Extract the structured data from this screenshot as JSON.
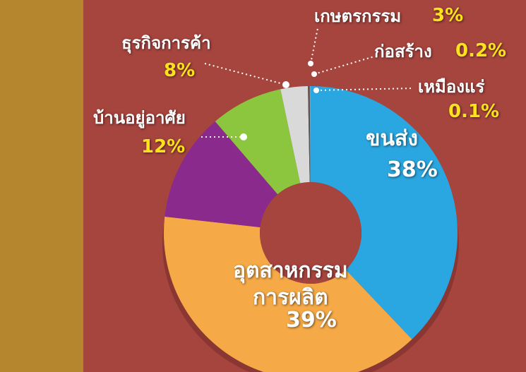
{
  "chart_data": {
    "type": "donut",
    "categories": [
      "ขนส่ง",
      "อุตสาหกรรม\nการผลิต",
      "บ้านอยู่อาศัย",
      "ธุรกิจการค้า",
      "เกษตรกรรม",
      "ก่อสร้าง",
      "เหมืองแร่"
    ],
    "values": [
      38,
      39,
      12,
      8,
      3,
      0.2,
      0.1
    ],
    "value_labels": [
      "38%",
      "39%",
      "12%",
      "8%",
      "3%",
      "0.2%",
      "0.1%"
    ],
    "colors": [
      "#2aa7e1",
      "#f6aa47",
      "#8a2a8c",
      "#8cc63f",
      "#d9d9d9",
      "#555555",
      "#9a9a9a"
    ]
  }
}
